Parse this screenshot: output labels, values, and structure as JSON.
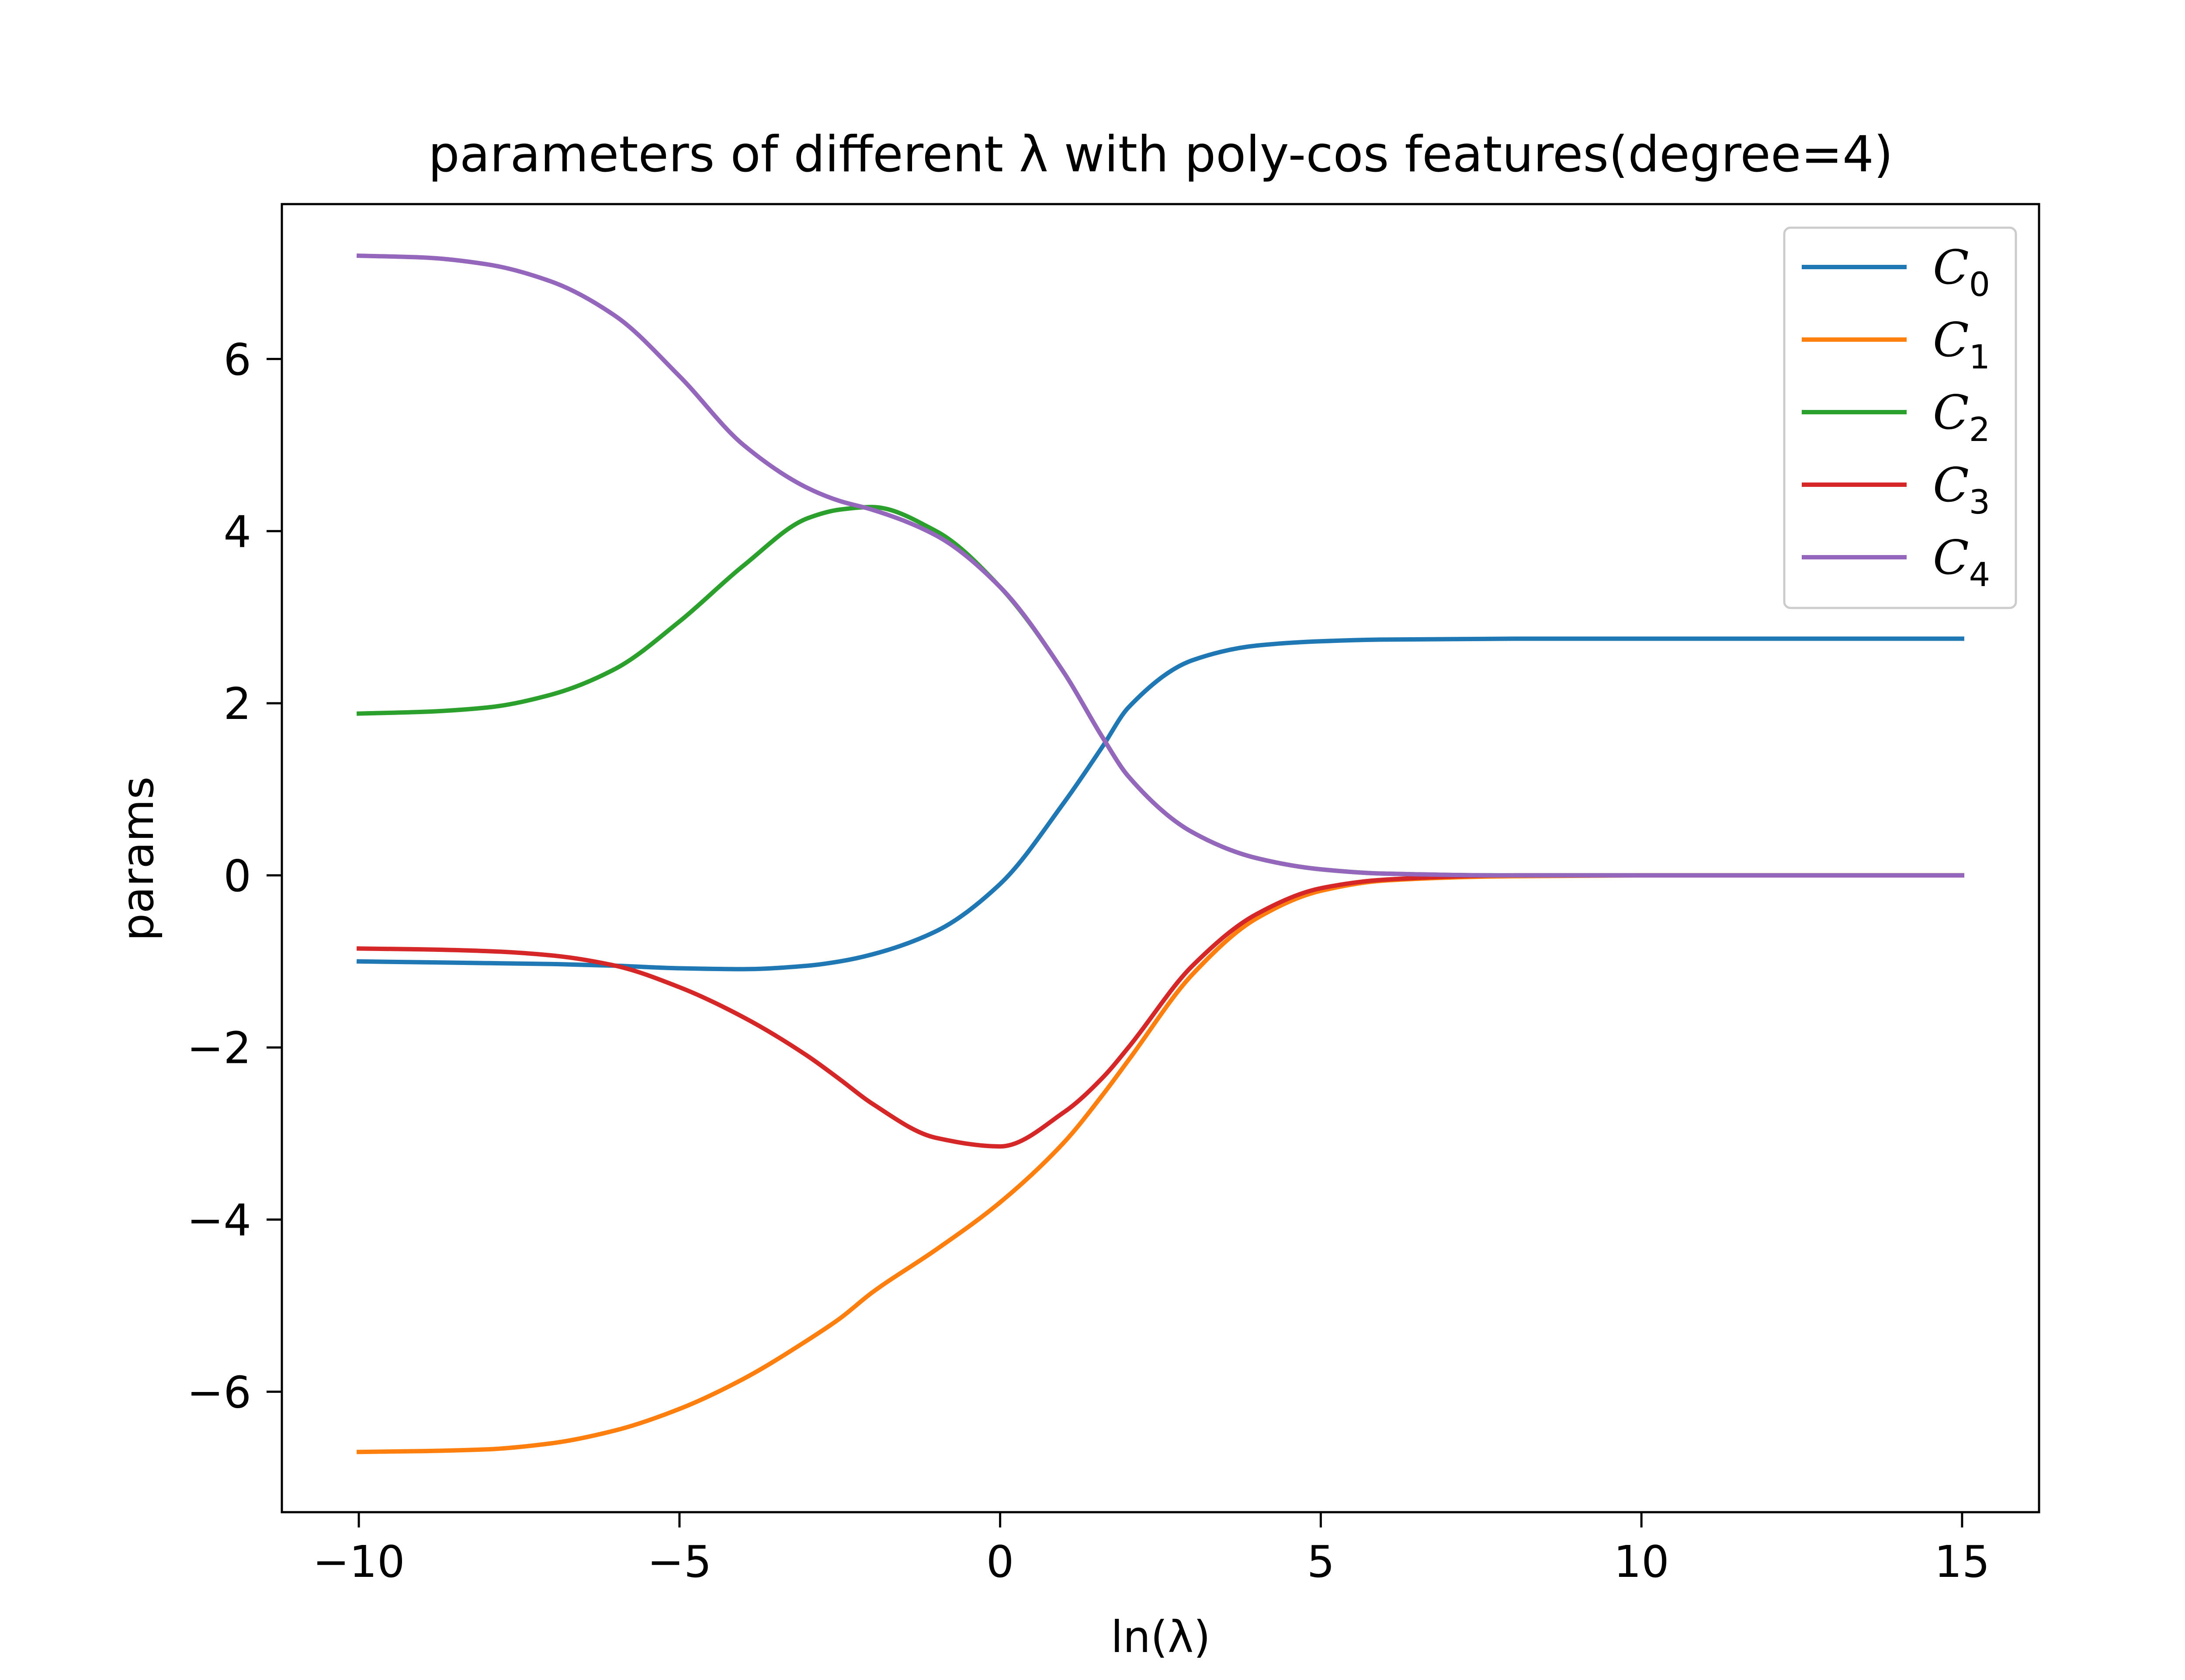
{
  "chart_data": {
    "type": "line",
    "title": "parameters of different λ with poly-cos features(degree=4)",
    "xlabel": "ln(λ)",
    "ylabel": "params",
    "xlim": [
      -11.2,
      16.2
    ],
    "ylim": [
      -7.4,
      7.8
    ],
    "xticks": [
      -10,
      -5,
      0,
      5,
      10,
      15
    ],
    "xtick_labels": [
      "−10",
      "−5",
      "0",
      "5",
      "10",
      "15"
    ],
    "yticks": [
      -6,
      -4,
      -2,
      0,
      2,
      4,
      6
    ],
    "ytick_labels": [
      "−6",
      "−4",
      "−2",
      "0",
      "2",
      "4",
      "6"
    ],
    "grid": false,
    "legend_position": "top-right",
    "x": [
      -10,
      -9,
      -8,
      -7,
      -6,
      -5,
      -4,
      -3,
      -2.5,
      -2,
      -1,
      0,
      1,
      1.6,
      2,
      3,
      4,
      5,
      6,
      8,
      10,
      12,
      15
    ],
    "series": [
      {
        "name": "C",
        "subscript": "0",
        "color": "#1f77b4",
        "values": [
          -1.0,
          -1.01,
          -1.02,
          -1.03,
          -1.05,
          -1.08,
          -1.09,
          -1.05,
          -1.0,
          -0.92,
          -0.65,
          -0.1,
          0.85,
          1.5,
          1.95,
          2.5,
          2.67,
          2.72,
          2.74,
          2.75,
          2.75,
          2.75,
          2.75
        ]
      },
      {
        "name": "C",
        "subscript": "1",
        "color": "#ff7f0e",
        "values": [
          -6.7,
          -6.69,
          -6.67,
          -6.6,
          -6.45,
          -6.2,
          -5.85,
          -5.4,
          -5.15,
          -4.85,
          -4.35,
          -3.8,
          -3.1,
          -2.55,
          -2.15,
          -1.15,
          -0.5,
          -0.18,
          -0.06,
          -0.01,
          0,
          0,
          0
        ]
      },
      {
        "name": "C",
        "subscript": "2",
        "color": "#2ca02c",
        "values": [
          1.88,
          1.9,
          1.95,
          2.1,
          2.4,
          2.95,
          3.6,
          4.15,
          4.25,
          4.28,
          4.0,
          3.35,
          2.35,
          1.6,
          1.15,
          0.5,
          0.2,
          0.07,
          0.02,
          0,
          0,
          0,
          0
        ]
      },
      {
        "name": "C",
        "subscript": "3",
        "color": "#d62728",
        "values": [
          -0.85,
          -0.86,
          -0.88,
          -0.93,
          -1.05,
          -1.3,
          -1.65,
          -2.1,
          -2.37,
          -2.65,
          -3.05,
          -3.15,
          -2.75,
          -2.35,
          -2.0,
          -1.05,
          -0.45,
          -0.15,
          -0.05,
          0,
          0,
          0,
          0
        ]
      },
      {
        "name": "C",
        "subscript": "4",
        "color": "#9467bd",
        "values": [
          7.2,
          7.18,
          7.1,
          6.9,
          6.5,
          5.8,
          5.0,
          4.5,
          4.35,
          4.25,
          3.95,
          3.35,
          2.35,
          1.6,
          1.15,
          0.5,
          0.2,
          0.07,
          0.02,
          0,
          0,
          0,
          0
        ]
      }
    ]
  }
}
